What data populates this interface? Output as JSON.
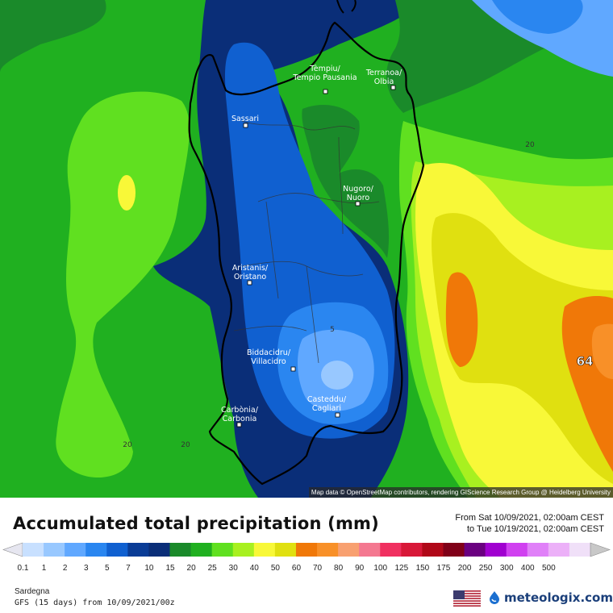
{
  "map": {
    "places": [
      {
        "name": "Tèmpiu/",
        "name2": "Tempio Pausania"
      },
      {
        "name": "Terranoa/",
        "name2": "Olbia"
      },
      {
        "name": "Sassari",
        "name2": ""
      },
      {
        "name": "Nugoro/",
        "name2": "Nuoro"
      },
      {
        "name": "Aristanis/",
        "name2": "Oristano"
      },
      {
        "name": "Biddacidru/",
        "name2": "Villacidro"
      },
      {
        "name": "Casteddu/",
        "name2": "Cagliari"
      },
      {
        "name": "Carbònia/",
        "name2": "Carbonia"
      }
    ],
    "isolines": [
      "20",
      "5",
      "20",
      "20"
    ],
    "max_label": "64",
    "attribution": "Map data © OpenStreetMap contributors, rendering GIScience Research Group @ Heidelberg University"
  },
  "legend": {
    "title": "Accumulated total precipitation (mm)",
    "from": "From Sat 10/09/2021, 02:00am CEST",
    "to": "to Tue 10/19/2021, 02:00am CEST",
    "levels": [
      "0.1",
      "1",
      "2",
      "3",
      "5",
      "7",
      "10",
      "15",
      "20",
      "25",
      "30",
      "40",
      "50",
      "60",
      "70",
      "80",
      "90",
      "100",
      "125",
      "150",
      "175",
      "200",
      "250",
      "300",
      "400",
      "500"
    ],
    "colors": [
      "#e6e6f0",
      "#c8e0ff",
      "#98c8ff",
      "#60a8ff",
      "#2a86f0",
      "#1060d0",
      "#0a3c96",
      "#0a2e78",
      "#1a8a2a",
      "#20b020",
      "#60e020",
      "#a8f020",
      "#f8f838",
      "#e0e010",
      "#f07808",
      "#f89028",
      "#f8a070",
      "#f47890",
      "#f03060",
      "#d81838",
      "#b00818",
      "#800018",
      "#6a0080",
      "#a000d0",
      "#d040f0",
      "#e080f8",
      "#ecb0f8",
      "#f0e0f8",
      "#c8c8c8"
    ],
    "map_colors": {
      "green_dark": "#1a8a2a",
      "green": "#20b020",
      "green_light": "#60e020",
      "lime": "#a8f020",
      "yellow": "#f8f838",
      "olive_yellow": "#e0e010",
      "orange": "#f07808",
      "navy": "#0a2e78",
      "blue": "#1060d0",
      "blue_mid": "#2a86f0",
      "blue_light": "#60a8ff",
      "blue_pale": "#98c8ff"
    }
  },
  "footer": {
    "region": "Sardegna",
    "model": "GFS (15 days) from 10/09/2021/00z",
    "brand": "meteologix.com",
    "flag_icon": "us-flag-icon",
    "logo_icon": "meteologix-logo-icon"
  }
}
